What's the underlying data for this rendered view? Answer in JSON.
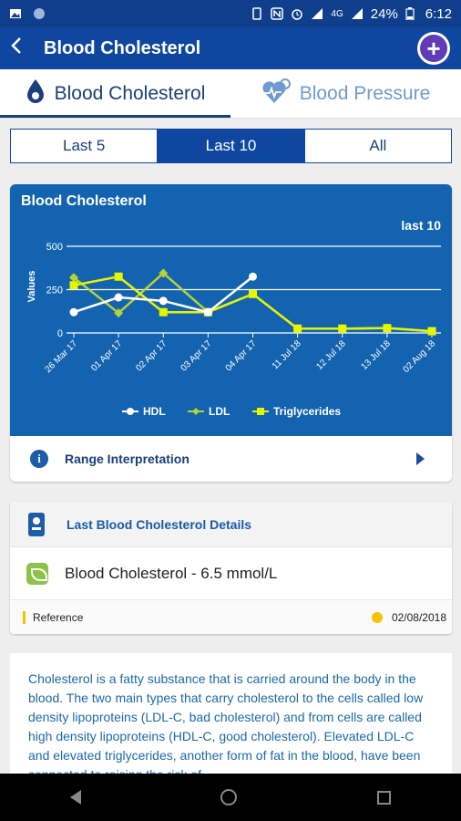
{
  "status_bar": {
    "battery": "24%",
    "time": "6:12",
    "network": "4G"
  },
  "app_bar": {
    "title": "Blood Cholesterol",
    "back_icon": "arrow-left-icon",
    "add_icon": "plus-circle-icon"
  },
  "tabs": [
    {
      "label": "Blood Cholesterol",
      "icon": "drop-icon",
      "active": true
    },
    {
      "label": "Blood Pressure",
      "icon": "heart-pulse-icon",
      "active": false
    }
  ],
  "segments": [
    {
      "label": "Last 5",
      "selected": false
    },
    {
      "label": "Last 10",
      "selected": true
    },
    {
      "label": "All",
      "selected": false
    }
  ],
  "chart_card": {
    "title": "Blood Cholesterol",
    "range_label": "last 10",
    "interpretation_label": "Range Interpretation"
  },
  "chart_data": {
    "type": "line",
    "ylabel": "Values",
    "ylim": [
      0,
      500
    ],
    "y_ticks": [
      "0",
      "250",
      "500"
    ],
    "categories": [
      "26 Mar 17",
      "01 Apr 17",
      "02 Apr 17",
      "03 Apr 17",
      "04 Apr 17",
      "11 Jul 18",
      "12 Jul 18",
      "13 Jul 18",
      "02 Aug 18"
    ],
    "legend_position": "bottom",
    "grid": true,
    "series": [
      {
        "name": "HDL",
        "color": "#ffffff",
        "marker": "circle",
        "points": [
          [
            0,
            120
          ],
          [
            1,
            205
          ],
          [
            2,
            185
          ],
          [
            3,
            120
          ],
          [
            4,
            325
          ]
        ]
      },
      {
        "name": "LDL",
        "color": "#b5d334",
        "marker": "diamond",
        "points": [
          [
            0,
            320
          ],
          [
            1,
            115
          ],
          [
            2,
            345
          ],
          [
            3,
            120
          ],
          [
            4,
            225
          ],
          [
            5,
            25
          ],
          [
            6,
            25
          ],
          [
            7,
            28
          ],
          [
            8,
            10
          ]
        ]
      },
      {
        "name": "Triglycerides",
        "color": "#e6f500",
        "marker": "square",
        "points": [
          [
            0,
            275
          ],
          [
            1,
            325
          ],
          [
            2,
            120
          ],
          [
            3,
            120
          ],
          [
            4,
            225
          ],
          [
            5,
            25
          ],
          [
            6,
            25
          ],
          [
            7,
            28
          ],
          [
            8,
            10
          ]
        ]
      }
    ]
  },
  "details": {
    "header": "Last Blood Cholesterol Details",
    "value_text": "Blood Cholesterol - 6.5 mmol/L",
    "reference_label": "Reference",
    "date": "02/08/2018"
  },
  "description": {
    "text": "Cholesterol is a fatty substance that is carried around the body in the blood. The two main types that carry cholesterol to the cells called low density lipoproteins (LDL-C, bad cholesterol) and from cells are called high density lipoproteins (HDL-C, good cholesterol). Elevated LDL-C and elevated triglycerides, another form of fat in the blood, have been connected to raising the risk of"
  },
  "colors": {
    "primary": "#0f47a0",
    "chart_bg": "#1363b0",
    "accent_purple": "#5f3bb5"
  }
}
